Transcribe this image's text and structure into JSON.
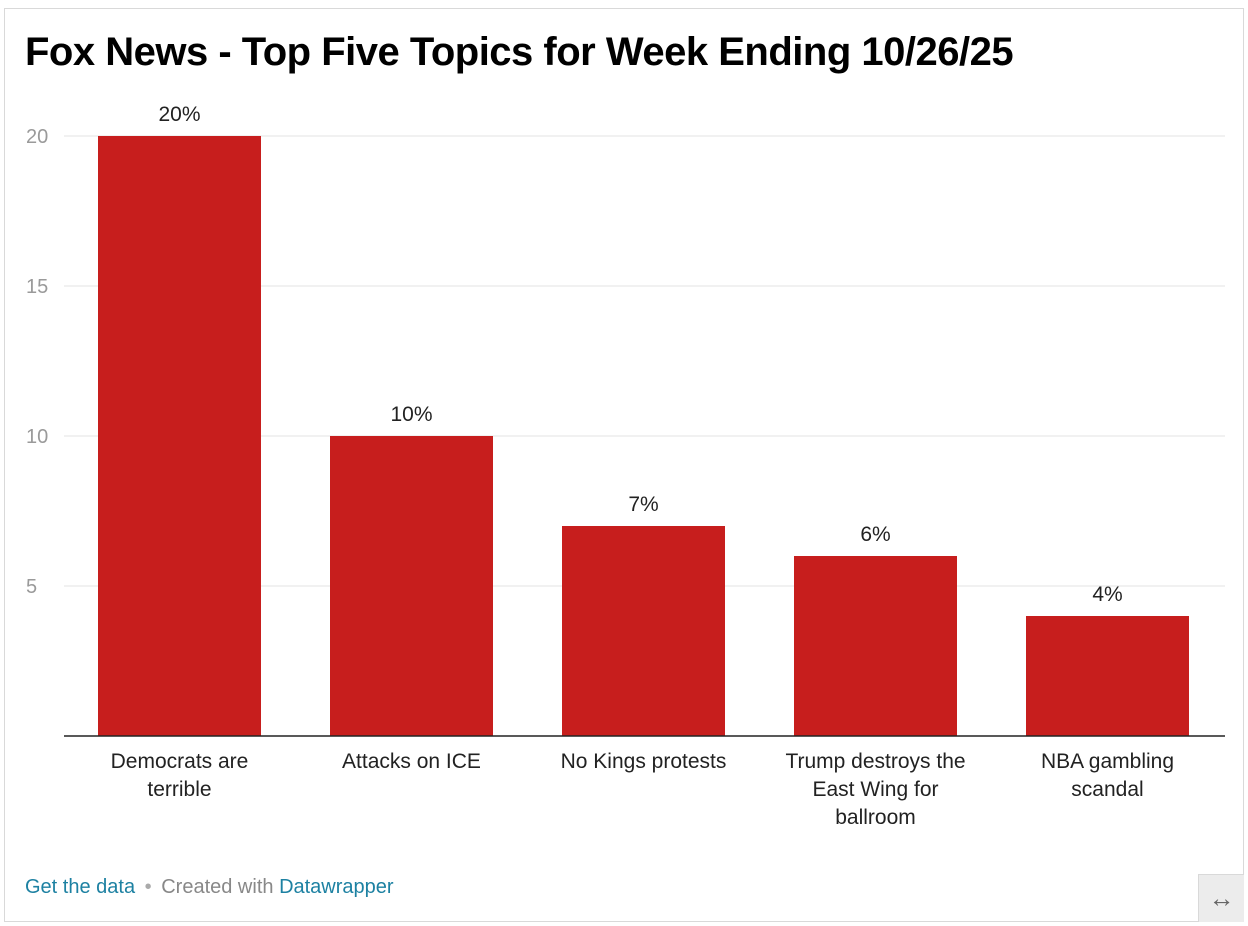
{
  "title": "Fox News - Top Five Topics for Week Ending 10/26/25",
  "chart_data": {
    "type": "bar",
    "title": "Fox News - Top Five Topics for Week Ending 10/26/25",
    "categories": [
      [
        "Democrats are",
        "terrible"
      ],
      [
        "Attacks on ICE"
      ],
      [
        "No Kings protests"
      ],
      [
        "Trump destroys the",
        "East Wing for",
        "ballroom"
      ],
      [
        "NBA gambling",
        "scandal"
      ]
    ],
    "values": [
      20,
      10,
      7,
      6,
      4
    ],
    "value_labels": [
      "20%",
      "10%",
      "7%",
      "6%",
      "4%"
    ],
    "yticks": [
      5,
      10,
      15,
      20
    ],
    "ylim": [
      0,
      20
    ],
    "bar_color": "#c71e1d",
    "grid": true,
    "xlabel": "",
    "ylabel": ""
  },
  "footer": {
    "get_data": "Get the data",
    "separator": "•",
    "created_with": "Created with",
    "tool": "Datawrapper"
  },
  "expand_icon": "↔"
}
